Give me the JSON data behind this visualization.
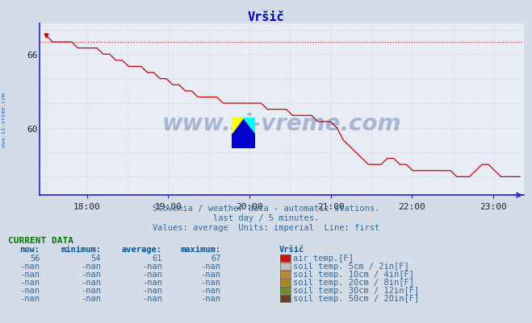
{
  "title": "Vršič",
  "bg_color": "#d4dce8",
  "plot_bg_color": "#e8edf5",
  "grid_color": "#c8ccd8",
  "grid_minor_color": "#dde0e8",
  "line_color": "#cc0000",
  "axis_color": "#2222cc",
  "title_color": "#0000bb",
  "watermark": "www.si-vreme.com",
  "watermark_color": "#1a3a8a",
  "side_text_color": "#2266bb",
  "subtitle1": "Slovenia / weather data - automatic stations.",
  "subtitle2": "last day / 5 minutes.",
  "subtitle3": "Values: average  Units: imperial  Line: first",
  "subtitle_color": "#336699",
  "current_data_label": "CURRENT DATA",
  "current_data_color": "#007700",
  "col_headers": [
    "now:",
    "minimum:",
    "average:",
    "maximum:",
    "Vršič"
  ],
  "header_color": "#0055aa",
  "row1_vals": [
    "56",
    "54",
    "61",
    "67"
  ],
  "row1_label": "air temp.[F]",
  "row1_color": "#cc1111",
  "row2_label": "soil temp. 5cm / 2in[F]",
  "row2_color": "#ccbbbb",
  "row3_label": "soil temp. 10cm / 4in[F]",
  "row3_color": "#bb8833",
  "row4_label": "soil temp. 20cm / 8in[F]",
  "row4_color": "#aa8822",
  "row5_label": "soil temp. 30cm / 12in[F]",
  "row5_color": "#778833",
  "row6_label": "soil temp. 50cm / 20in[F]",
  "row6_color": "#664422",
  "val_color": "#336699",
  "ylim": [
    54.5,
    68.5
  ],
  "xlim_start": 17.42,
  "xlim_end": 23.38,
  "ytick_vals": [
    60,
    66
  ],
  "ytick_labels": [
    "60",
    "66"
  ],
  "xtick_vals": [
    18,
    19,
    20,
    21,
    22,
    23
  ],
  "xtick_labels": [
    "18:00",
    "19:00",
    "20:00",
    "21:00",
    "22:00",
    "23:00"
  ],
  "dashed_y": 67.0,
  "icon_yellow": "#ffff00",
  "icon_cyan": "#00ffff",
  "icon_blue": "#0000cc"
}
